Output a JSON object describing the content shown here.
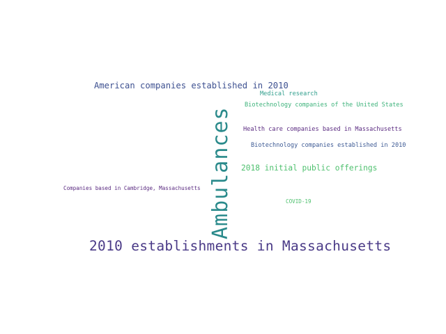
{
  "words": [
    {
      "text": "2010 establishments in Massachusetts",
      "color": "#4a3a87"
    },
    {
      "text": "Ambulances",
      "color": "#2a8a8b"
    },
    {
      "text": "American companies established in 2010",
      "color": "#3d5090"
    },
    {
      "text": "Medical research",
      "color": "#2f9e8c"
    },
    {
      "text": "Biotechnology companies of the United States",
      "color": "#3cb27a"
    },
    {
      "text": "Health care companies based in Massachusetts",
      "color": "#5a2a80"
    },
    {
      "text": "Biotechnology companies established in 2010",
      "color": "#3d5a94"
    },
    {
      "text": "2018 initial public offerings",
      "color": "#4ec06e"
    },
    {
      "text": "Companies based in Cambridge, Massachusetts",
      "color": "#5a2a80"
    },
    {
      "text": "COVID-19",
      "color": "#4ec06e"
    }
  ]
}
